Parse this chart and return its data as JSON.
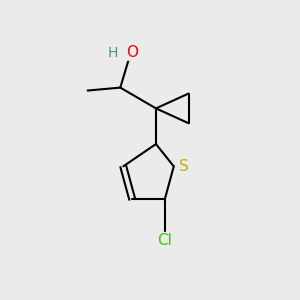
{
  "bg_color": "#EBEBEB",
  "bond_color": "#000000",
  "bond_width": 1.5,
  "atom_colors": {
    "O": "#FF0000",
    "S": "#B8B800",
    "Cl": "#33CC00",
    "H": "#4A9090",
    "C": "#000000"
  },
  "font_size_atom": 10,
  "fig_size": [
    3.0,
    3.0
  ],
  "dpi": 100
}
